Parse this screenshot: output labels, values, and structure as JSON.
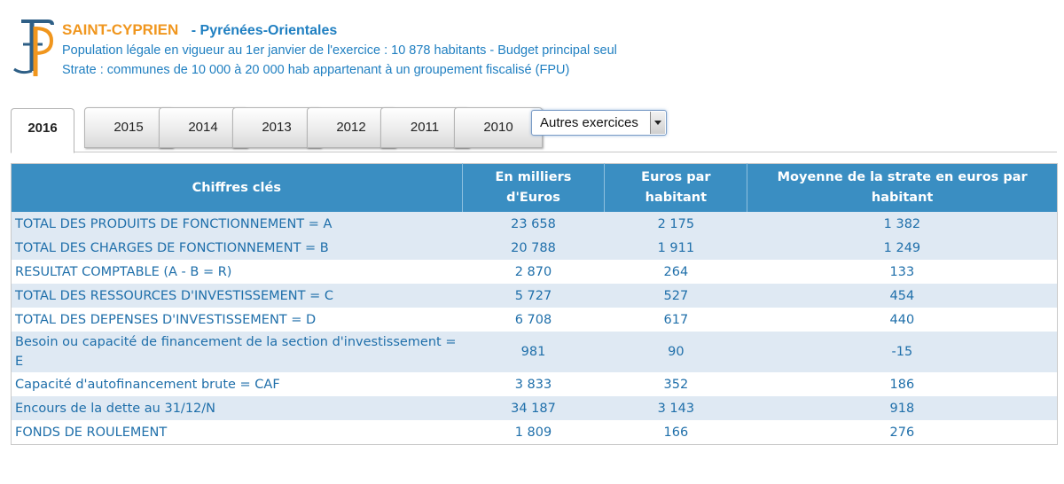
{
  "header": {
    "city": "SAINT-CYPRIEN",
    "department": "- Pyrénées-Orientales",
    "population_line": "Population légale en vigueur au 1er janvier de l'exercice : 10 878 habitants - Budget principal seul",
    "strate_line": "Strate : communes de 10 000 à 20 000 hab appartenant à un groupement fiscalisé (FPU)"
  },
  "tabs": [
    {
      "label": "2016",
      "active": true
    },
    {
      "label": "2015"
    },
    {
      "label": "2014"
    },
    {
      "label": "2013"
    },
    {
      "label": "2012"
    },
    {
      "label": "2011"
    },
    {
      "label": "2010"
    }
  ],
  "select": {
    "selected": "Autres exercices"
  },
  "table": {
    "headers": [
      "Chiffres clés",
      "En milliers d'Euros",
      "Euros par habitant",
      "Moyenne de la strate en euros par habitant"
    ],
    "rows": [
      [
        "TOTAL DES PRODUITS DE FONCTIONNEMENT = A",
        "23 658",
        "2 175",
        "1 382"
      ],
      [
        "TOTAL DES CHARGES DE FONCTIONNEMENT = B",
        "20 788",
        "1 911",
        "1 249"
      ],
      [
        "RESULTAT COMPTABLE (A - B = R)",
        "2 870",
        "264",
        "133"
      ],
      [
        "TOTAL DES RESSOURCES D'INVESTISSEMENT = C",
        "5 727",
        "527",
        "454"
      ],
      [
        "TOTAL DES DEPENSES D'INVESTISSEMENT = D",
        "6 708",
        "617",
        "440"
      ],
      [
        "Besoin ou capacité de financement de la section d'investissement = E",
        "981",
        "90",
        "-15"
      ],
      [
        "Capacité d'autofinancement brute = CAF",
        "3 833",
        "352",
        "186"
      ],
      [
        "Encours de la dette au 31/12/N",
        "34 187",
        "3 143",
        "918"
      ],
      [
        "FONDS DE ROULEMENT",
        "1 809",
        "166",
        "276"
      ]
    ]
  },
  "colors": {
    "accent_orange": "#f0961e",
    "accent_blue": "#1f7fc1",
    "table_header": "#3a8ec2",
    "row_alt": "#dfe9f3"
  }
}
